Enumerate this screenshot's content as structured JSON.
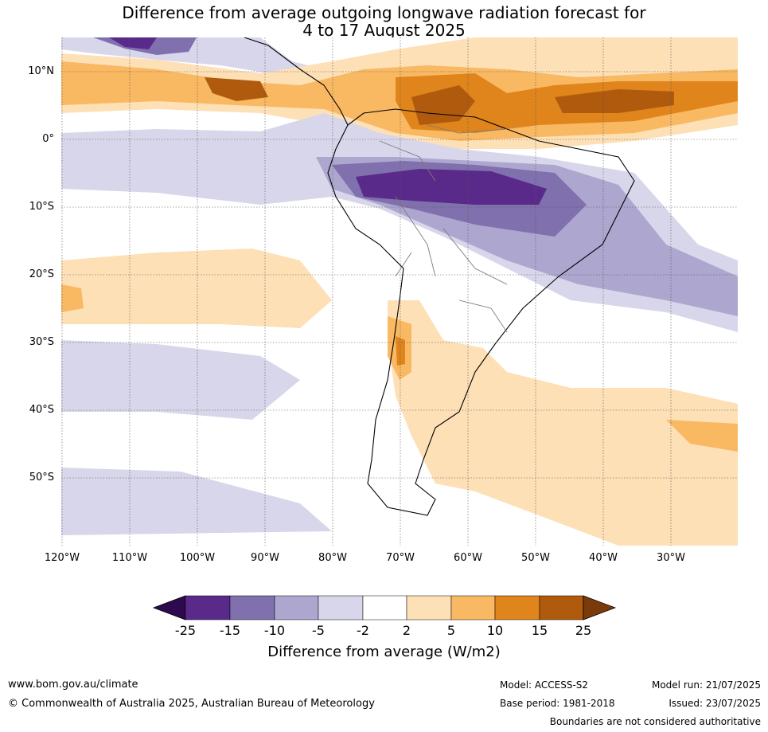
{
  "title_line1": "Difference from average outgoing longwave radiation forecast for",
  "title_line2": "4 to 17 August 2025",
  "lat_labels": [
    "10°N",
    "0°",
    "10°S",
    "20°S",
    "30°S",
    "40°S",
    "50°S"
  ],
  "lon_labels": [
    "120°W",
    "110°W",
    "100°W",
    "90°W",
    "80°W",
    "70°W",
    "60°W",
    "50°W",
    "40°W",
    "30°W"
  ],
  "colorbar": {
    "ticks": [
      "-25",
      "-15",
      "-10",
      "-5",
      "-2",
      "2",
      "5",
      "10",
      "15",
      "25"
    ],
    "colors": [
      "#2d0a4e",
      "#5a2a8a",
      "#8070ae",
      "#ada6cf",
      "#d8d6ea",
      "#ffffff",
      "#fde0b6",
      "#f9b862",
      "#e0841c",
      "#b05a0e",
      "#7a3a0a"
    ],
    "label": "Difference from average (W/m2)"
  },
  "footer": {
    "url": "www.bom.gov.au/climate",
    "copyright": "© Commonwealth of Australia 2025, Australian Bureau of Meteorology",
    "model": "Model: ACCESS-S2",
    "base_period": "Base period: 1981-2018",
    "model_run": "Model run: 21/07/2025",
    "issued": "Issued: 23/07/2025",
    "disclaimer": "Boundaries are not considered authoritative"
  }
}
